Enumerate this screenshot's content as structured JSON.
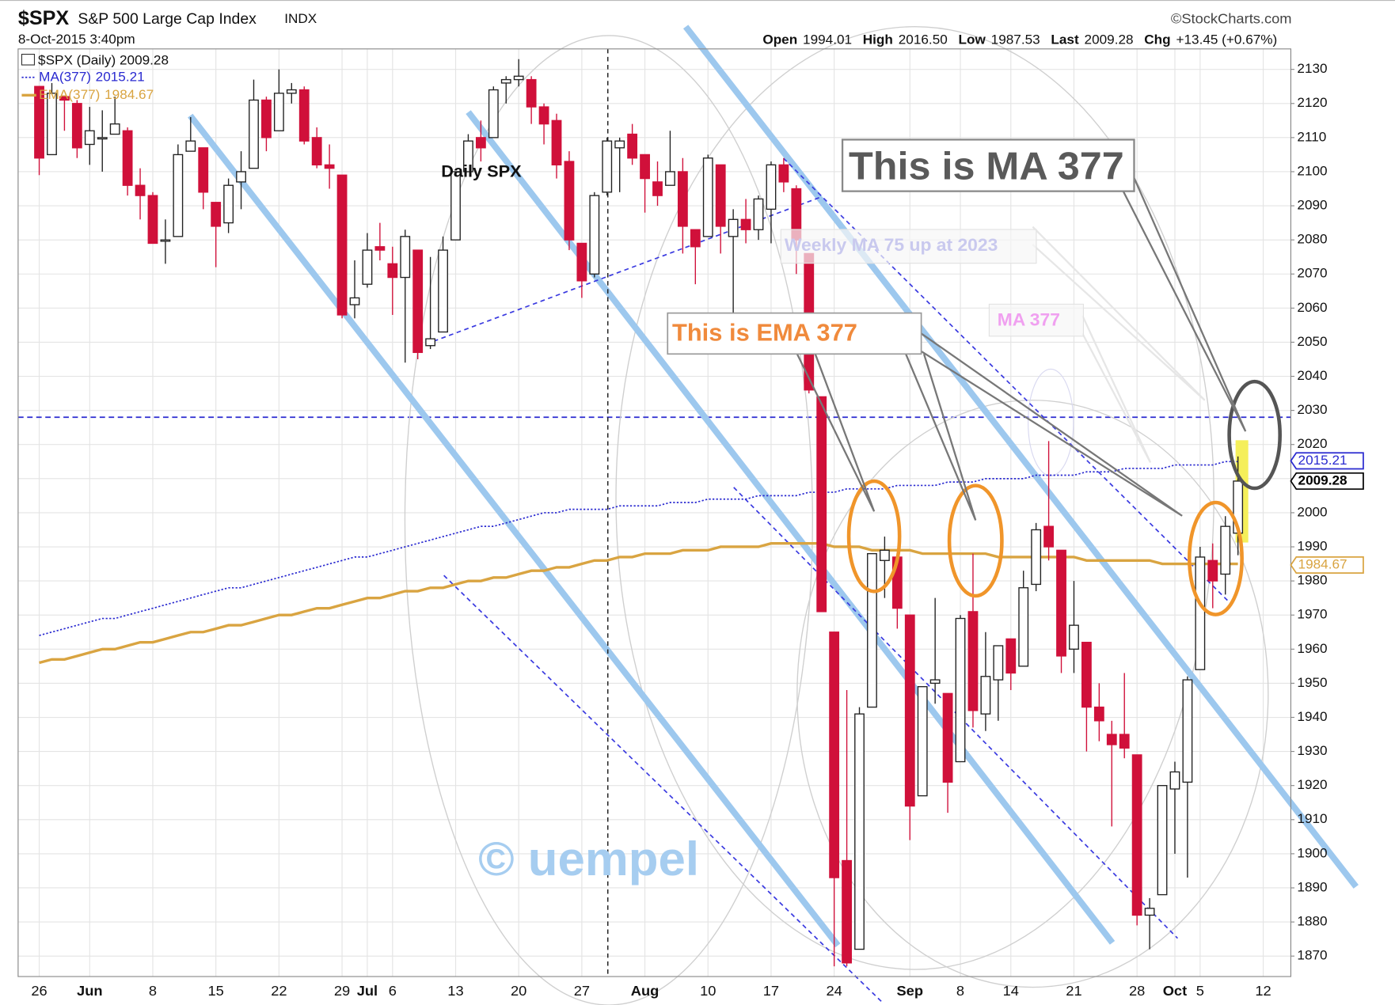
{
  "header": {
    "symbol": "$SPX",
    "name": "S&P 500 Large Cap Index",
    "exchange": "INDX",
    "date": "8-Oct-2015 3:40pm",
    "source": "©StockCharts.com",
    "quote": [
      {
        "label": "Open",
        "value": "1994.01"
      },
      {
        "label": "High",
        "value": "2016.50"
      },
      {
        "label": "Low",
        "value": "1987.53"
      },
      {
        "label": "Last",
        "value": "2009.28"
      },
      {
        "label": "Chg",
        "value": "+13.45 (+0.67%)"
      }
    ]
  },
  "chart_data": {
    "type": "candlestick",
    "price_name": "$SPX (Daily)",
    "up_color": "#ffffff",
    "down_color": "#d0103a",
    "categories": [
      "26",
      null,
      null,
      null,
      "Jun",
      null,
      null,
      null,
      null,
      "8",
      null,
      null,
      null,
      null,
      "15",
      null,
      null,
      null,
      null,
      "22",
      null,
      null,
      null,
      null,
      "29",
      null,
      "Jul",
      null,
      "6",
      null,
      null,
      null,
      null,
      "13",
      null,
      null,
      null,
      null,
      "20",
      null,
      null,
      null,
      null,
      "27",
      null,
      null,
      null,
      null,
      "Aug",
      null,
      null,
      null,
      null,
      "10",
      null,
      null,
      null,
      null,
      "17",
      null,
      null,
      null,
      null,
      "24",
      null,
      null,
      null,
      null,
      null,
      "Sep",
      null,
      null,
      null,
      "8",
      null,
      null,
      null,
      "14",
      null,
      null,
      null,
      null,
      "21",
      null,
      null,
      null,
      null,
      "28",
      null,
      null,
      "Oct",
      null,
      "5",
      null,
      null,
      null,
      null,
      "12"
    ],
    "open": [
      2125,
      2105,
      2122,
      2120,
      2108,
      2110,
      2111,
      2112,
      2096,
      2093,
      2080,
      2081,
      2106,
      2107,
      2091,
      2085,
      2097,
      2101,
      2121,
      2112,
      2123,
      2124,
      2110,
      2102,
      2099,
      2061,
      2067,
      2078,
      2073,
      2069,
      2077,
      2049,
      2053,
      2080,
      2100,
      2110,
      2110,
      2126,
      2127,
      2127,
      2119,
      2115,
      2103,
      2079,
      2070,
      2094,
      2107,
      2111,
      2105,
      2097,
      2096,
      2100,
      2083,
      2081,
      2102,
      2081,
      2086,
      2083,
      2089,
      2102,
      2095,
      2076,
      2034,
      1965,
      1898,
      1872,
      1943,
      1986,
      1987,
      1970,
      1917,
      1950,
      1947,
      1927,
      1971,
      1941,
      1951,
      1963,
      1955,
      1979,
      1996,
      1989,
      1960,
      1962,
      1943,
      1935,
      1935,
      1929,
      1882,
      1888,
      1919,
      1921,
      1954,
      1986,
      1982,
      1994.01,
      null,
      null
    ],
    "high": [
      2125,
      2126,
      2122,
      2121,
      2119,
      2118,
      2122,
      2113,
      2101,
      2094,
      2086,
      2108,
      2116,
      2107,
      2091,
      2098,
      2106,
      2127,
      2122,
      2130,
      2126,
      2125,
      2113,
      2108,
      2099,
      2074,
      2082,
      2085,
      2078,
      2083,
      2077,
      2075,
      2081,
      2100,
      2111,
      2115,
      2125,
      2128,
      2133,
      2128,
      2120,
      2117,
      2106,
      2079,
      2094,
      2110,
      2110,
      2114,
      2105,
      2103,
      2112,
      2104,
      2083,
      2105,
      2102,
      2089,
      2092,
      2093,
      2103,
      2104,
      2096,
      2076,
      2034,
      1965,
      1948,
      1943,
      1988,
      1993,
      1987,
      1970,
      1948,
      1975,
      1947,
      1970,
      1988,
      1965,
      1961,
      1963,
      1983,
      1997,
      2021,
      1989,
      1980,
      1962,
      1950,
      1939,
      1953,
      1929,
      1887,
      1920,
      1927,
      1952,
      1990,
      1991,
      1999,
      2016.5,
      null,
      null
    ],
    "low": [
      2099,
      2105,
      2112,
      2104,
      2102,
      2100,
      2111,
      2093,
      2086,
      2079,
      2073,
      2081,
      2106,
      2089,
      2072,
      2082,
      2089,
      2101,
      2106,
      2112,
      2120,
      2108,
      2101,
      2095,
      2057,
      2057,
      2066,
      2074,
      2058,
      2044,
      2045,
      2048,
      2053,
      2080,
      2100,
      2103,
      2110,
      2120,
      2125,
      2114,
      2108,
      2098,
      2077,
      2063,
      2069,
      2093,
      2094,
      2102,
      2088,
      2090,
      2096,
      2076,
      2067,
      2081,
      2076,
      2052,
      2079,
      2080,
      2079,
      2094,
      2070,
      2035,
      1971,
      1867,
      1867,
      1872,
      1943,
      1975,
      1966,
      1904,
      1917,
      1944,
      1912,
      1927,
      1937,
      1936,
      1939,
      1948,
      1955,
      1977,
      1986,
      1953,
      1953,
      1930,
      1933,
      1908,
      1928,
      1879,
      1872,
      1888,
      1900,
      1893,
      1954,
      1972,
      1976,
      1987.53,
      null,
      null
    ],
    "close": [
      2104,
      2123,
      2121,
      2107,
      2112,
      2110,
      2114,
      2096,
      2093,
      2079,
      2080,
      2105,
      2109,
      2094,
      2084,
      2096,
      2100,
      2121,
      2110,
      2123,
      2124,
      2109,
      2102,
      2101,
      2058,
      2063,
      2077,
      2077,
      2069,
      2081,
      2047,
      2051,
      2077,
      2100,
      2109,
      2107,
      2124,
      2127,
      2128,
      2119,
      2114,
      2102,
      2080,
      2068,
      2093,
      2109,
      2109,
      2104,
      2098,
      2093,
      2100,
      2084,
      2078,
      2104,
      2084,
      2086,
      2083,
      2092,
      2102,
      2097,
      2080,
      2036,
      1971,
      1893,
      1868,
      1941,
      1988,
      1989,
      1972,
      1914,
      1949,
      1951,
      1921,
      1969,
      1942,
      1952,
      1961,
      1953,
      1978,
      1995,
      1990,
      1958,
      1967,
      1943,
      1939,
      1932,
      1931,
      1882,
      1884,
      1920,
      1924,
      1951,
      1987,
      1980,
      1996,
      2009.28,
      null,
      null
    ],
    "series": [
      {
        "name": "MA(377)",
        "color": "#2a2ad0",
        "last": 2015.21,
        "values": [
          1964,
          1965,
          1966,
          1967,
          1968,
          1969,
          1969,
          1970,
          1971,
          1972,
          1973,
          1974,
          1975,
          1976,
          1977,
          1978,
          1978,
          1979,
          1980,
          1981,
          1982,
          1983,
          1984,
          1985,
          1986,
          1987,
          1987,
          1988,
          1989,
          1990,
          1991,
          1992,
          1993,
          1994,
          1995,
          1996,
          1996,
          1997,
          1998,
          1999,
          2000,
          2000,
          2001,
          2001,
          2001,
          2001,
          2002,
          2002,
          2002,
          2002,
          2003,
          2003,
          2003,
          2004,
          2004,
          2004,
          2004,
          2005,
          2005,
          2005,
          2005,
          2006,
          2006,
          2006,
          2007,
          2007,
          2007,
          2007,
          2008,
          2008,
          2008,
          2008,
          2009,
          2009,
          2009,
          2010,
          2010,
          2010,
          2010,
          2011,
          2011,
          2011,
          2011,
          2012,
          2012,
          2012,
          2013,
          2013,
          2013,
          2013,
          2014,
          2014,
          2014,
          2014,
          2015,
          2015,
          null,
          null
        ]
      },
      {
        "name": "EMA(377)",
        "color": "#d9a441",
        "last": 1984.67,
        "values": [
          1956,
          1957,
          1957,
          1958,
          1959,
          1960,
          1960,
          1961,
          1962,
          1962,
          1963,
          1964,
          1965,
          1965,
          1966,
          1967,
          1967,
          1968,
          1969,
          1970,
          1970,
          1971,
          1972,
          1972,
          1973,
          1974,
          1975,
          1975,
          1976,
          1977,
          1977,
          1978,
          1978,
          1979,
          1980,
          1980,
          1981,
          1981,
          1982,
          1983,
          1983,
          1984,
          1984,
          1985,
          1986,
          1986,
          1987,
          1987,
          1988,
          1988,
          1988,
          1989,
          1989,
          1989,
          1990,
          1990,
          1990,
          1990,
          1991,
          1991,
          1991,
          1991,
          1991,
          1990,
          1990,
          1990,
          1989,
          1989,
          1989,
          1989,
          1988,
          1988,
          1988,
          1988,
          1988,
          1988,
          1987,
          1987,
          1987,
          1987,
          1987,
          1987,
          1987,
          1986,
          1986,
          1986,
          1986,
          1986,
          1986,
          1985,
          1985,
          1985,
          1985,
          1985,
          1985,
          1985,
          null,
          null
        ]
      }
    ],
    "hline": 2028,
    "ylim": [
      1864,
      2136
    ],
    "yticks": [
      1870,
      1880,
      1890,
      1900,
      1910,
      1920,
      1930,
      1940,
      1950,
      1960,
      1970,
      1980,
      1990,
      2000,
      2010,
      2020,
      2030,
      2040,
      2050,
      2060,
      2070,
      2080,
      2090,
      2100,
      2110,
      2120,
      2130
    ],
    "grid": true,
    "annotations": [
      "Daily SPX",
      "This is MA 377",
      "This is EMA 377",
      "Weekly MA 75 up at 2023",
      "MA 377",
      "© uempel"
    ]
  }
}
